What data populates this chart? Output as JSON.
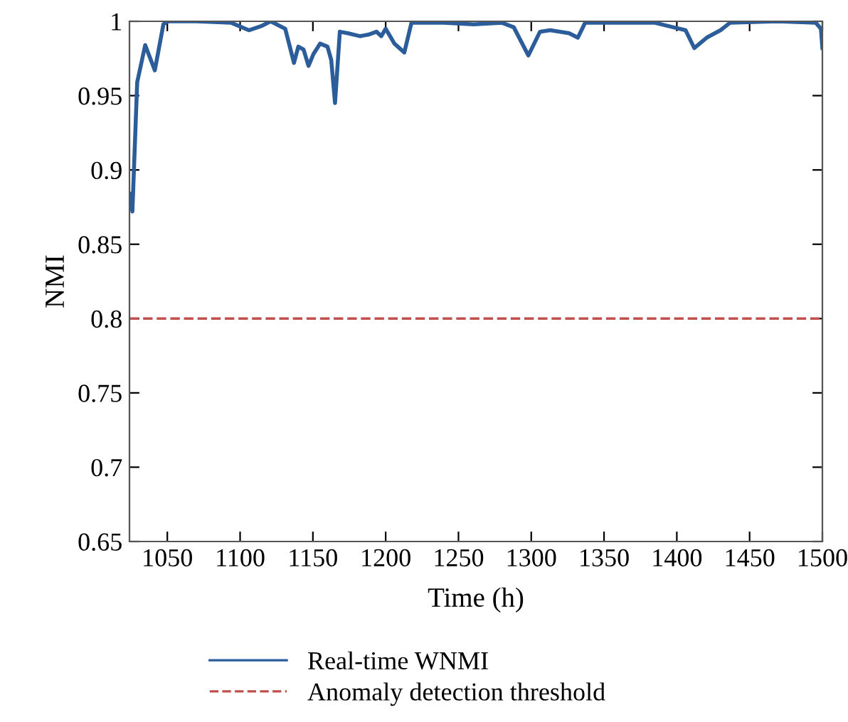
{
  "chart_data": {
    "type": "line",
    "xlabel": "Time (h)",
    "ylabel": "NMI",
    "xlim": [
      1024,
      1500
    ],
    "xticks": [
      1050,
      1100,
      1150,
      1200,
      1250,
      1300,
      1350,
      1400,
      1450,
      1500
    ],
    "ylim": [
      0.65,
      1
    ],
    "yticks": [
      0.65,
      0.7,
      0.75,
      0.8,
      0.85,
      0.9,
      0.95,
      1
    ],
    "legend": "bottom",
    "grid": false,
    "line_style": "solid",
    "marker": "none",
    "series": [
      {
        "name": "Real-time WNMI",
        "color": "#2b5d9b",
        "x": [
          1024.6,
          1026,
          1029.3,
          1034.8,
          1041.4,
          1047.3,
          1050.5,
          1070,
          1094,
          1106,
          1115,
          1121,
          1131,
          1137,
          1140,
          1143.6,
          1147,
          1150.4,
          1155,
          1160,
          1162.6,
          1165.2,
          1168.5,
          1174,
          1182.3,
          1188,
          1193.7,
          1197,
          1200,
          1206,
          1212.8,
          1217.7,
          1240,
          1260.4,
          1280,
          1288,
          1298,
          1306,
          1313,
          1326,
          1332,
          1337,
          1360,
          1385,
          1397.6,
          1406,
          1412,
          1420.5,
          1430,
          1436.5,
          1469,
          1495.5,
          1499,
          1500
        ],
        "values": [
          0.884,
          0.872,
          0.959,
          0.984,
          0.967,
          0.998,
          1.0,
          1.0,
          0.999,
          0.994,
          0.997,
          1.0,
          0.995,
          0.972,
          0.983,
          0.981,
          0.97,
          0.978,
          0.985,
          0.983,
          0.974,
          0.945,
          0.993,
          0.992,
          0.99,
          0.991,
          0.993,
          0.99,
          0.995,
          0.985,
          0.979,
          0.999,
          0.999,
          0.998,
          0.999,
          0.996,
          0.977,
          0.993,
          0.994,
          0.992,
          0.989,
          0.999,
          0.999,
          0.999,
          0.996,
          0.994,
          0.982,
          0.989,
          0.994,
          0.999,
          1.0,
          0.999,
          0.995,
          0.982
        ]
      }
    ],
    "ref_lines": [
      {
        "axis": "y",
        "value": 0.8,
        "label": "Anomaly detection threshold",
        "color": "#c0504d",
        "line_style": "dashed"
      }
    ]
  }
}
